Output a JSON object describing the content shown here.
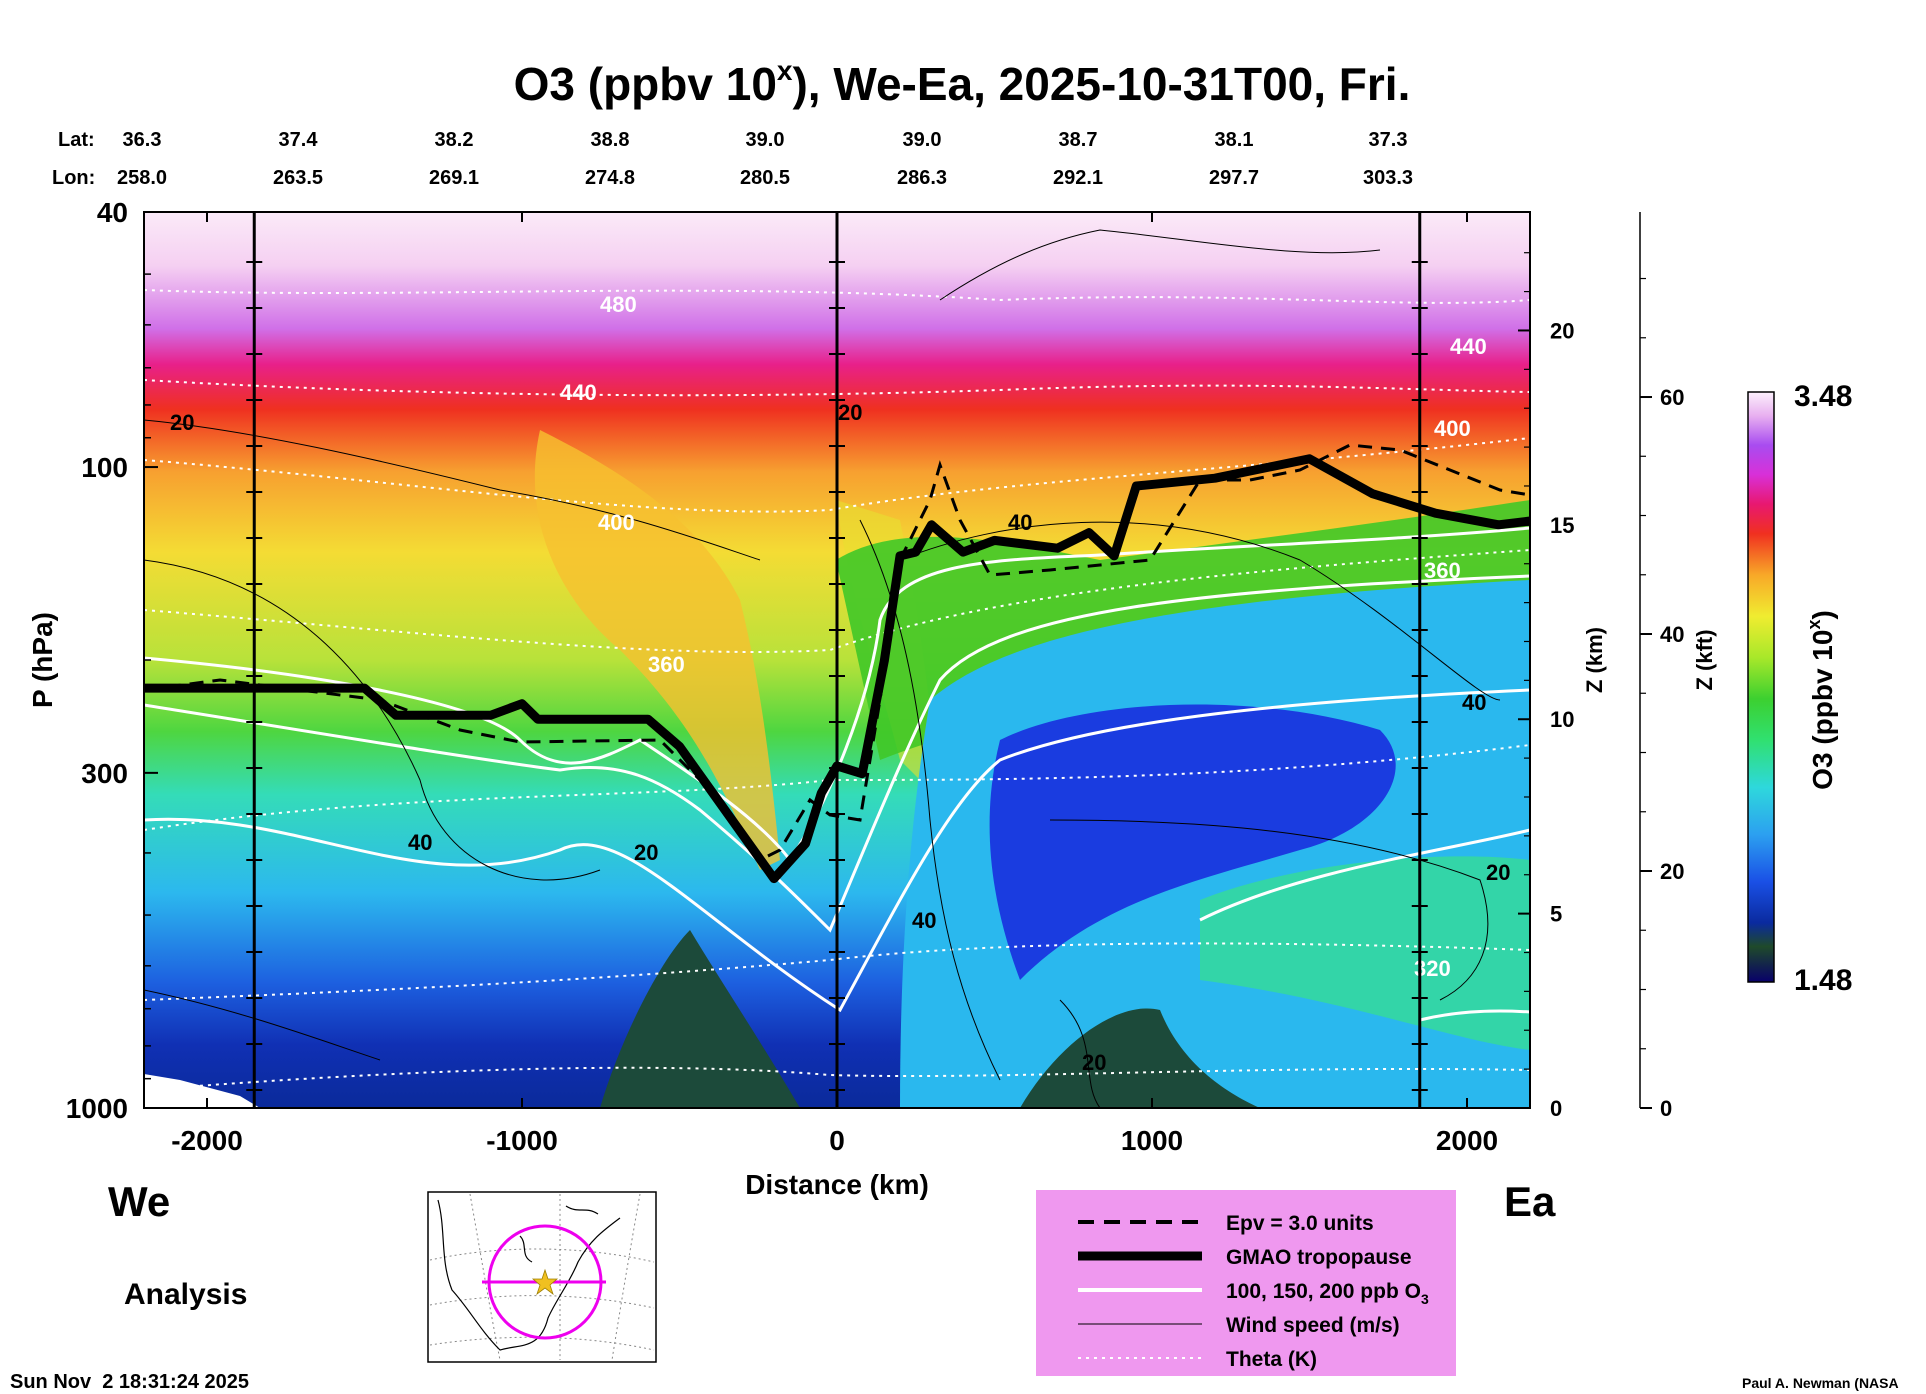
{
  "chart_data": {
    "type": "heatmap",
    "title_main": "O3 (ppbv 10",
    "title_sup": "x",
    "title_rest": "), We-Ea, 2025-10-31T00, Fri.",
    "lat_label": "Lat:",
    "lon_label": "Lon:",
    "lat_values": [
      "36.3",
      "37.4",
      "38.2",
      "38.8",
      "39.0",
      "39.0",
      "38.7",
      "38.1",
      "37.3"
    ],
    "lon_values": [
      "258.0",
      "263.5",
      "269.1",
      "274.8",
      "280.5",
      "286.3",
      "292.1",
      "297.7",
      "303.3"
    ],
    "xlabel": "Distance (km)",
    "xlim": [
      -2200,
      2200
    ],
    "xticks": [
      -2000,
      -1000,
      0,
      1000,
      2000
    ],
    "xticklabels": [
      "-2000",
      "-1000",
      "0",
      "1000",
      "2000"
    ],
    "ylabel": "P (hPa)",
    "ylim": [
      1000,
      40
    ],
    "yticks": [
      40,
      100,
      300,
      1000
    ],
    "yticklabels": [
      "40",
      "100",
      "300",
      "1000"
    ],
    "z_km_label": "Z (km)",
    "z_km_ticks": [
      0,
      5,
      10,
      15,
      20
    ],
    "z_km_ticklabels": [
      "0",
      "5",
      "10",
      "15",
      "20"
    ],
    "z_kft_label": "Z (kft)",
    "z_kft_ticks": [
      0,
      20,
      40,
      60
    ],
    "z_kft_ticklabels": [
      "0",
      "20",
      "40",
      "60"
    ],
    "colorbar_label": "O3 (ppbv 10",
    "colorbar_label_sup": "x",
    "colorbar_label_close": ")",
    "colorbar_max": "3.48",
    "colorbar_min": "1.48",
    "colorbar_range": [
      1.48,
      3.48
    ],
    "colorbar_colors": [
      "#08006a",
      "#1a3a32",
      "#1f5a2a",
      "#0a2a9e",
      "#1a46e0",
      "#2a8cf0",
      "#2cc4f0",
      "#30dcd0",
      "#30e090",
      "#38e040",
      "#7ae02a",
      "#c0e82a",
      "#f0ec30",
      "#f8c828",
      "#f8a028",
      "#f06020",
      "#e82018",
      "#f01868",
      "#e020d0",
      "#a040f0",
      "#c070f0",
      "#e0a0f0",
      "#f4d0f4",
      "#fcf0fc"
    ],
    "tropopause_km": [
      [
        -2200,
        10.8
      ],
      [
        -1500,
        10.8
      ],
      [
        -1400,
        10.1
      ],
      [
        -1100,
        10.1
      ],
      [
        -1000,
        10.4
      ],
      [
        -950,
        10.0
      ],
      [
        -600,
        10.0
      ],
      [
        -500,
        9.3
      ],
      [
        -200,
        5.9
      ],
      [
        -100,
        6.8
      ],
      [
        -50,
        8.1
      ],
      [
        0,
        8.8
      ],
      [
        80,
        8.6
      ],
      [
        150,
        11.5
      ],
      [
        200,
        14.2
      ],
      [
        250,
        14.3
      ],
      [
        300,
        15.0
      ],
      [
        400,
        14.3
      ],
      [
        500,
        14.6
      ],
      [
        700,
        14.4
      ],
      [
        800,
        14.8
      ],
      [
        880,
        14.2
      ],
      [
        950,
        16.0
      ],
      [
        1200,
        16.2
      ],
      [
        1500,
        16.7
      ],
      [
        1700,
        15.8
      ],
      [
        1900,
        15.3
      ],
      [
        2100,
        15.0
      ],
      [
        2200,
        15.1
      ]
    ],
    "isentropes_K": [
      "480",
      "440",
      "400",
      "360",
      "320"
    ],
    "ozone_contours_ppb": [
      100,
      150,
      200
    ],
    "wind_labels_ms": [
      "20",
      "40"
    ],
    "legend": [
      {
        "style": "dashed",
        "label": "Epv = 3.0 units"
      },
      {
        "style": "thick",
        "label": "GMAO tropopause"
      },
      {
        "style": "white",
        "label": "100, 150, 200 ppb O",
        "sub": "3"
      },
      {
        "style": "thin",
        "label": "Wind speed (m/s)"
      },
      {
        "style": "dotted",
        "label": "Theta (K)"
      }
    ],
    "legend_colors": {
      "panel_bg": "#ef98ef",
      "dotted": "#ffffff"
    }
  },
  "left_label": "We",
  "right_label": "Ea",
  "mode_label": "Analysis",
  "timestamp": "Sun Nov  2 18:31:24 2025",
  "credit": "Paul A. Newman (NASA"
}
